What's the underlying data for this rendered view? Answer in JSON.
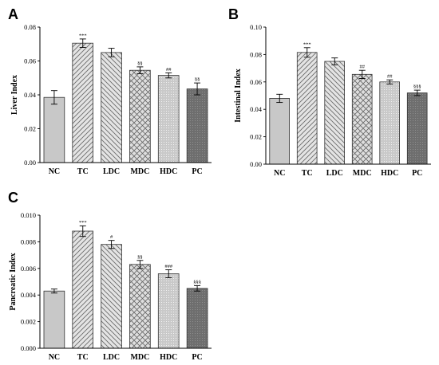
{
  "chart_data": [
    {
      "type": "bar",
      "panel": "A",
      "title": "",
      "xlabel": "",
      "ylabel": "Liver Index",
      "ylim": [
        0.0,
        0.08
      ],
      "yticks": [
        "0.00",
        "0.02",
        "0.04",
        "0.06",
        "0.08"
      ],
      "categories": [
        "NC",
        "TC",
        "LDC",
        "MDC",
        "HDC",
        "PC"
      ],
      "values": [
        0.0385,
        0.0705,
        0.065,
        0.0545,
        0.0515,
        0.0435
      ],
      "errors": [
        0.004,
        0.0025,
        0.0025,
        0.002,
        0.0015,
        0.0035
      ],
      "annotations": [
        "",
        "***",
        "",
        "§§",
        "##",
        "§§"
      ]
    },
    {
      "type": "bar",
      "panel": "B",
      "title": "",
      "xlabel": "",
      "ylabel": "Intestinal Index",
      "ylim": [
        0.0,
        0.1
      ],
      "yticks": [
        "0.00",
        "0.02",
        "0.04",
        "0.06",
        "0.08",
        "0.10"
      ],
      "categories": [
        "NC",
        "TC",
        "LDC",
        "MDC",
        "HDC",
        "PC"
      ],
      "values": [
        0.048,
        0.0815,
        0.075,
        0.0655,
        0.06,
        0.052
      ],
      "errors": [
        0.003,
        0.0035,
        0.0025,
        0.003,
        0.0015,
        0.002
      ],
      "annotations": [
        "",
        "***",
        "",
        "##",
        "##",
        "§§§"
      ]
    },
    {
      "type": "bar",
      "panel": "C",
      "title": "",
      "xlabel": "",
      "ylabel": "Pancreatic Index",
      "ylim": [
        0.0,
        0.01
      ],
      "yticks": [
        "0.000",
        "0.002",
        "0.004",
        "0.006",
        "0.008",
        "0.010"
      ],
      "categories": [
        "NC",
        "TC",
        "LDC",
        "MDC",
        "HDC",
        "PC"
      ],
      "values": [
        0.0043,
        0.0088,
        0.0078,
        0.0063,
        0.0056,
        0.0045
      ],
      "errors": [
        0.00015,
        0.0004,
        0.0003,
        0.0003,
        0.0003,
        0.0002
      ],
      "annotations": [
        "",
        "***",
        "#",
        "§§",
        "###",
        "§§§"
      ]
    }
  ],
  "colors": {
    "axis": "#000000",
    "bar_light": "#c8c8c8",
    "bar_hatch_bg": "#e4e4e4",
    "bar_dark": "#6e6e6e",
    "hatch_line": "#777777"
  }
}
